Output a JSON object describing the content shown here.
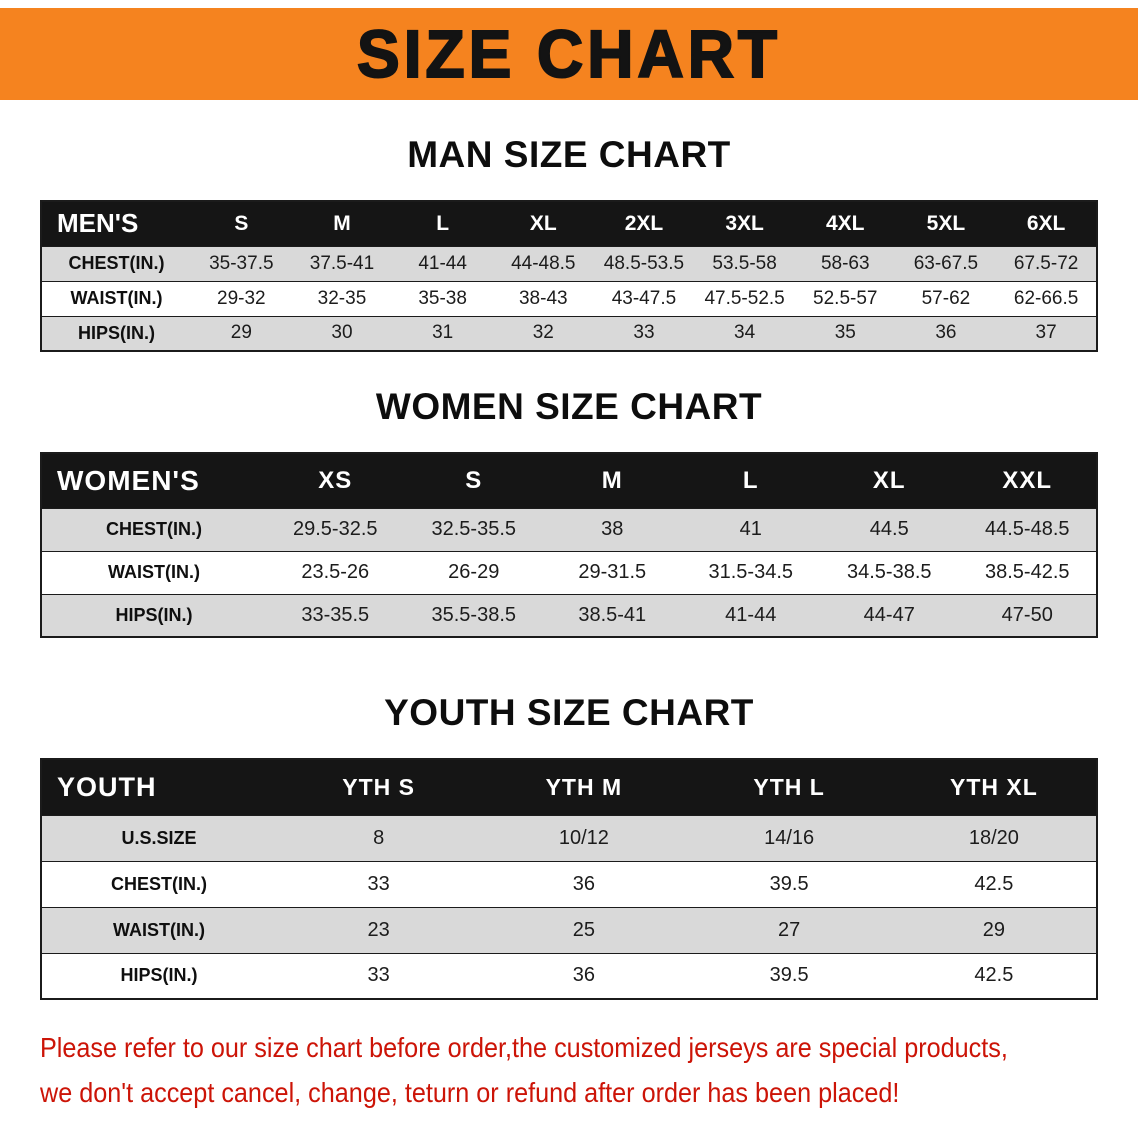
{
  "banner": {
    "title": "SIZE CHART",
    "background": "#f5831f"
  },
  "sections": [
    {
      "heading": "MAN SIZE CHART",
      "table": {
        "header": [
          "MEN'S",
          "S",
          "M",
          "L",
          "XL",
          "2XL",
          "3XL",
          "4XL",
          "5XL",
          "6XL"
        ],
        "rows": [
          [
            "CHEST(IN.)",
            "35-37.5",
            "37.5-41",
            "41-44",
            "44-48.5",
            "48.5-53.5",
            "53.5-58",
            "58-63",
            "63-67.5",
            "67.5-72"
          ],
          [
            "WAIST(IN.)",
            "29-32",
            "32-35",
            "35-38",
            "38-43",
            "43-47.5",
            "47.5-52.5",
            "52.5-57",
            "57-62",
            "62-66.5"
          ],
          [
            "HIPS(IN.)",
            "29",
            "30",
            "31",
            "32",
            "33",
            "34",
            "35",
            "36",
            "37"
          ]
        ]
      }
    },
    {
      "heading": "WOMEN SIZE CHART",
      "table": {
        "header": [
          "WOMEN'S",
          "XS",
          "S",
          "M",
          "L",
          "XL",
          "XXL"
        ],
        "rows": [
          [
            "CHEST(IN.)",
            "29.5-32.5",
            "32.5-35.5",
            "38",
            "41",
            "44.5",
            "44.5-48.5"
          ],
          [
            "WAIST(IN.)",
            "23.5-26",
            "26-29",
            "29-31.5",
            "31.5-34.5",
            "34.5-38.5",
            "38.5-42.5"
          ],
          [
            "HIPS(IN.)",
            "33-35.5",
            "35.5-38.5",
            "38.5-41",
            "41-44",
            "44-47",
            "47-50"
          ]
        ]
      }
    },
    {
      "heading": "YOUTH SIZE CHART",
      "table": {
        "header": [
          "YOUTH",
          "YTH S",
          "YTH M",
          "YTH L",
          "YTH XL"
        ],
        "rows": [
          [
            "U.S.SIZE",
            "8",
            "10/12",
            "14/16",
            "18/20"
          ],
          [
            "CHEST(IN.)",
            "33",
            "36",
            "39.5",
            "42.5"
          ],
          [
            "WAIST(IN.)",
            "23",
            "25",
            "27",
            "29"
          ],
          [
            "HIPS(IN.)",
            "33",
            "36",
            "39.5",
            "42.5"
          ]
        ]
      }
    }
  ],
  "footer": {
    "line1": "Please refer to our size chart before order,the customized jerseys are special products,",
    "line2": "we don't accept cancel, change, teturn or refund after order has been placed!",
    "text_color": "#cc1407"
  }
}
